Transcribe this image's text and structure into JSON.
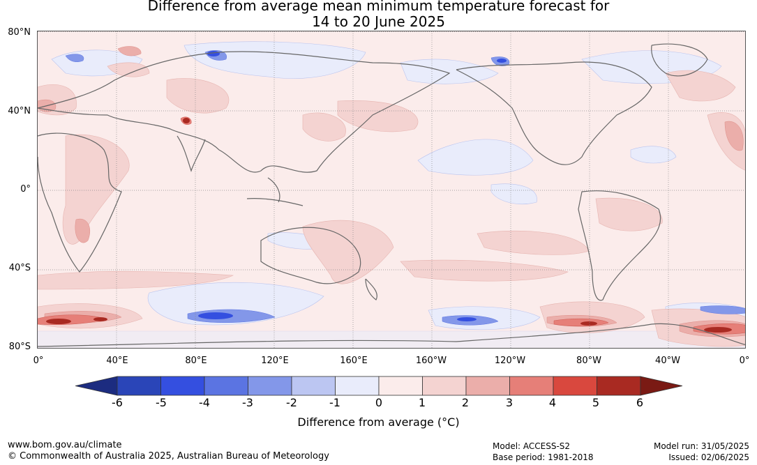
{
  "title": {
    "line1": "Difference from average mean minimum temperature forecast for",
    "line2": "14 to 20 June 2025"
  },
  "map": {
    "lat_labels": [
      "80°N",
      "40°N",
      "0°",
      "40°S",
      "80°S"
    ],
    "lon_labels": [
      "0°",
      "40°E",
      "80°E",
      "120°E",
      "160°E",
      "160°W",
      "120°W",
      "80°W",
      "40°W",
      "0°"
    ]
  },
  "colorbar": {
    "ticks": [
      "-6",
      "-5",
      "-4",
      "-3",
      "-2",
      "-1",
      "0",
      "1",
      "2",
      "3",
      "4",
      "5",
      "6"
    ],
    "colors": [
      "#1c2c80",
      "#2a45b8",
      "#344fe0",
      "#5b74e2",
      "#8397e9",
      "#bcc6f2",
      "#e9ecfb",
      "#fbeceb",
      "#f4d3d1",
      "#ebaeaa",
      "#e67f78",
      "#d9483e",
      "#a92a22",
      "#7a1a14"
    ],
    "label": "Difference from average (°C)"
  },
  "footer": {
    "url": "www.bom.gov.au/climate",
    "copyright": "© Commonwealth of Australia 2025, Australian Bureau of Meteorology",
    "model": "Model: ACCESS-S2",
    "base_period": "Base period: 1981-2018",
    "model_run": "Model run: 31/05/2025",
    "issued": "Issued: 02/06/2025"
  }
}
